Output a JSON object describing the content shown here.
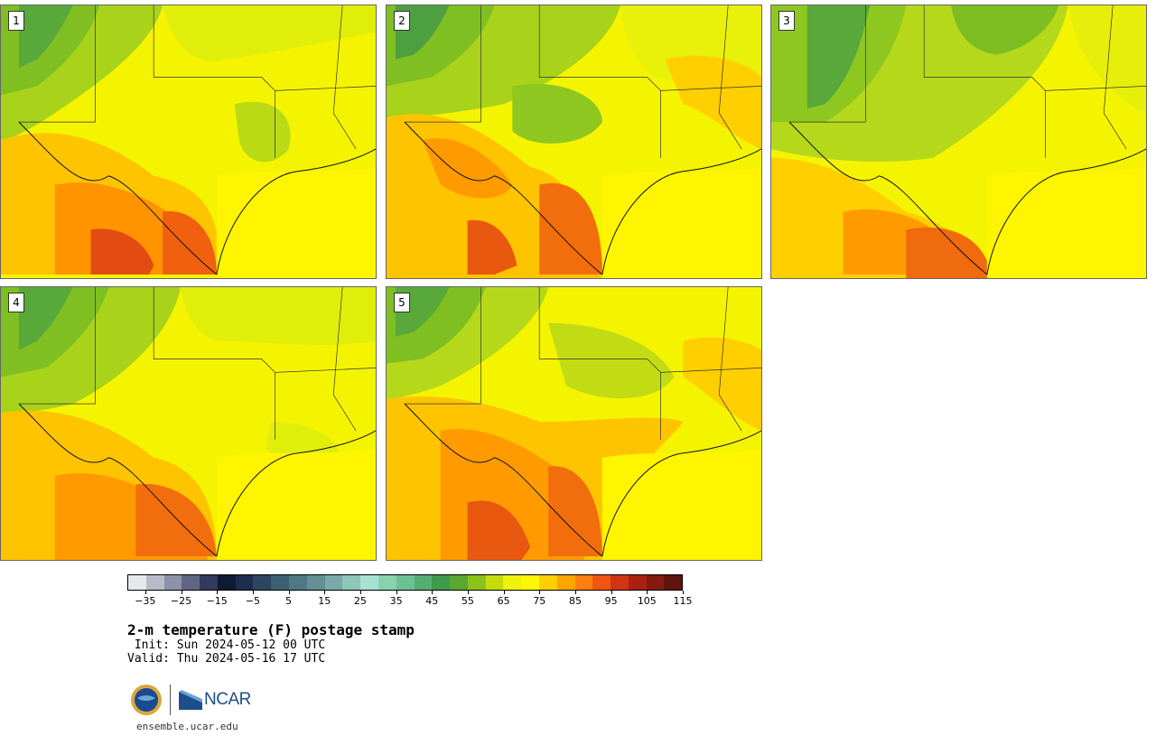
{
  "title": "2-m temperature (F) postage stamp",
  "init": " Init: Sun 2024-05-12 00 UTC",
  "valid": "Valid: Thu 2024-05-16 17 UTC",
  "members": [
    "1",
    "2",
    "3",
    "4",
    "5"
  ],
  "colorbar": {
    "ticks": [
      "−35",
      "−25",
      "−15",
      "−5",
      "5",
      "15",
      "25",
      "35",
      "45",
      "55",
      "65",
      "75",
      "85",
      "95",
      "105",
      "115"
    ],
    "tick_values": [
      -35,
      -25,
      -15,
      -5,
      5,
      15,
      25,
      35,
      45,
      55,
      65,
      75,
      85,
      95,
      105,
      115
    ],
    "range": [
      -40,
      120
    ],
    "step": 5,
    "colors": [
      "#e6e8ec",
      "#b9bcc8",
      "#8d92a8",
      "#5f6684",
      "#323b5e",
      "#0f1a33",
      "#1e2d4e",
      "#2c4662",
      "#3c5f74",
      "#4f7884",
      "#629094",
      "#79aaa8",
      "#90c5bc",
      "#a8e2d0",
      "#86d3ae",
      "#6bc191",
      "#54ad72",
      "#3f9a4a",
      "#5aa62e",
      "#8ac21c",
      "#c4dc0e",
      "#eef20a",
      "#fff700",
      "#ffcf00",
      "#ffa500",
      "#ff7e0d",
      "#f0550f",
      "#d03512",
      "#aa2112",
      "#841a10",
      "#5e150d"
    ]
  },
  "footer": {
    "nsf_logo": "NSF",
    "ncar_logo": "NCAR",
    "website": "ensemble.ucar.edu"
  }
}
